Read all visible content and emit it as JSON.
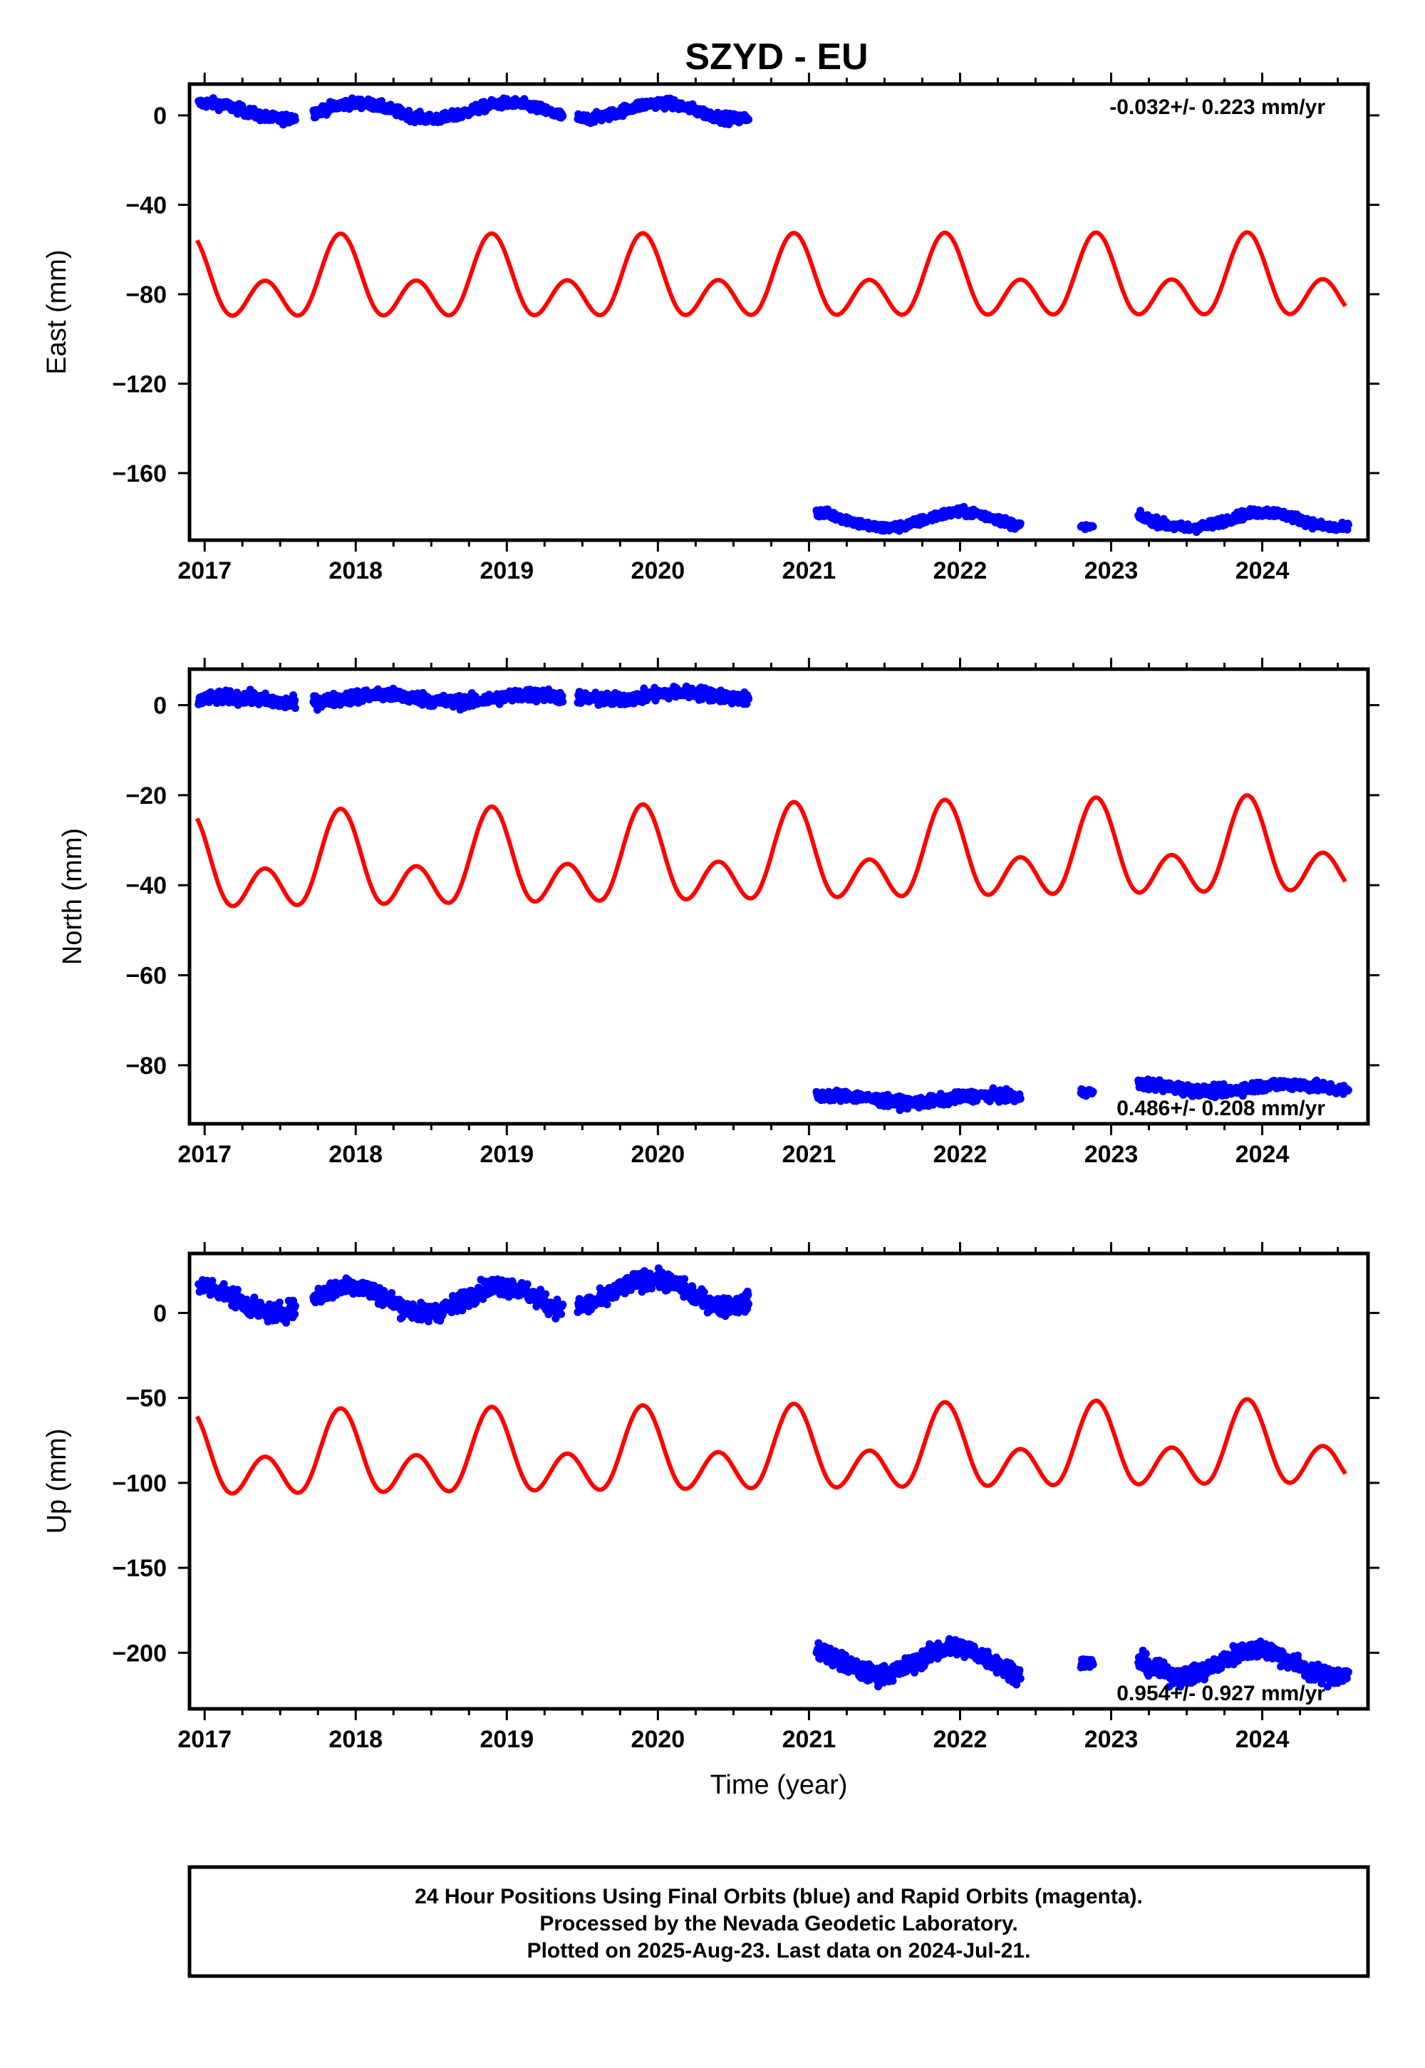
{
  "title": "SZYD - EU",
  "xlabel": "Time (year)",
  "x_ticks": [
    2017,
    2018,
    2019,
    2020,
    2021,
    2022,
    2023,
    2024
  ],
  "colors": {
    "final_orbits": "#0000ff",
    "model": "#ff0000",
    "frame": "#000000"
  },
  "chart_data": [
    {
      "type": "scatter",
      "component": "East",
      "ylabel": "East (mm)",
      "xlim": [
        2016.9,
        2024.7
      ],
      "ylim": [
        -190,
        14
      ],
      "y_ticks": [
        0,
        -40,
        -80,
        -120,
        -160
      ],
      "rate_label": "-0.032+/- 0.223 mm/yr",
      "rate_position": "top-right",
      "segments": [
        {
          "x0": 2016.96,
          "x1": 2017.6,
          "y0": 2,
          "amp": 3.5,
          "noise": 2.0,
          "ph": 1.5
        },
        {
          "x0": 2017.72,
          "x1": 2019.37,
          "y0": 2,
          "amp": 3.5,
          "noise": 2.0,
          "ph": 1.5
        },
        {
          "x0": 2019.47,
          "x1": 2020.6,
          "y0": 2,
          "amp": 3.5,
          "noise": 2.0,
          "ph": 1.5
        },
        {
          "x0": 2021.05,
          "x1": 2022.4,
          "y0": -181,
          "amp": 3.5,
          "noise": 1.8,
          "ph": 1.5
        },
        {
          "x0": 2022.8,
          "x1": 2022.88,
          "y0": -184,
          "amp": 0,
          "noise": 0.8,
          "ph": 0
        },
        {
          "x0": 2023.18,
          "x1": 2024.57,
          "y0": -181,
          "amp": 3.5,
          "noise": 1.8,
          "ph": 1.5
        }
      ],
      "seasonal_model": {
        "x0": 2016.95,
        "x1": 2024.55,
        "offset": -76,
        "annual_amp": -10.5,
        "annual_phase": 0.4,
        "semiannual_amp": 12.5,
        "semiannual_phase": 0.9,
        "rate": 0.1
      }
    },
    {
      "type": "scatter",
      "component": "North",
      "ylabel": "North (mm)",
      "xlim": [
        2016.9,
        2024.7
      ],
      "ylim": [
        -93,
        8
      ],
      "y_ticks": [
        0,
        -20,
        -40,
        -60,
        -80
      ],
      "rate_label": "0.486+/- 0.208 mm/yr",
      "rate_position": "bottom-right",
      "segments": [
        {
          "x0": 2016.96,
          "x1": 2017.6,
          "y0": 1,
          "amp": 0.8,
          "noise": 1.3,
          "ph": 0.5
        },
        {
          "x0": 2017.72,
          "x1": 2019.37,
          "y0": 1.5,
          "amp": 0.8,
          "noise": 1.3,
          "ph": 0.5
        },
        {
          "x0": 2019.47,
          "x1": 2020.6,
          "y0": 2,
          "amp": 0.8,
          "noise": 1.3,
          "ph": 0.5
        },
        {
          "x0": 2021.05,
          "x1": 2022.4,
          "y0": -87.5,
          "amp": 0.8,
          "noise": 1.1,
          "ph": 0.5
        },
        {
          "x0": 2022.8,
          "x1": 2022.88,
          "y0": -86,
          "amp": 0,
          "noise": 0.7,
          "ph": 0
        },
        {
          "x0": 2023.18,
          "x1": 2024.57,
          "y0": -85,
          "amp": 0.8,
          "noise": 1.1,
          "ph": 0.5
        }
      ],
      "seasonal_model": {
        "x0": 2016.95,
        "x1": 2024.55,
        "offset": -37,
        "annual_amp": -6.5,
        "annual_phase": 0.4,
        "semiannual_amp": 7.0,
        "semiannual_phase": 0.9,
        "rate": 0.5
      }
    },
    {
      "type": "scatter",
      "component": "Up",
      "ylabel": "Up (mm)",
      "xlim": [
        2016.9,
        2024.7
      ],
      "ylim": [
        -233,
        35
      ],
      "y_ticks": [
        0,
        -50,
        -100,
        -150,
        -200
      ],
      "rate_label": "0.954+/- 0.927 mm/yr",
      "rate_position": "bottom-right",
      "segments": [
        {
          "x0": 2016.96,
          "x1": 2017.6,
          "y0": 8,
          "amp": 8,
          "noise": 5,
          "ph": 1.8
        },
        {
          "x0": 2017.72,
          "x1": 2019.37,
          "y0": 8,
          "amp": 8,
          "noise": 5,
          "ph": 1.8
        },
        {
          "x0": 2019.47,
          "x1": 2020.6,
          "y0": 12,
          "amp": 8,
          "noise": 5,
          "ph": 1.8
        },
        {
          "x0": 2021.05,
          "x1": 2022.4,
          "y0": -205,
          "amp": 8,
          "noise": 5,
          "ph": 1.8
        },
        {
          "x0": 2022.8,
          "x1": 2022.88,
          "y0": -206,
          "amp": 0,
          "noise": 3,
          "ph": 0
        },
        {
          "x0": 2023.18,
          "x1": 2024.57,
          "y0": -206,
          "amp": 8,
          "noise": 5,
          "ph": 1.8
        }
      ],
      "seasonal_model": {
        "x0": 2016.95,
        "x1": 2024.55,
        "offset": -88,
        "annual_amp": -14,
        "annual_phase": 0.4,
        "semiannual_amp": 17,
        "semiannual_phase": 0.9,
        "rate": 0.9
      }
    }
  ],
  "footer": {
    "line1": "24 Hour Positions Using Final Orbits (blue) and Rapid Orbits (magenta).",
    "line2": "Processed by the Nevada Geodetic Laboratory.",
    "line3": "Plotted on 2025-Aug-23. Last data on 2024-Jul-21."
  }
}
